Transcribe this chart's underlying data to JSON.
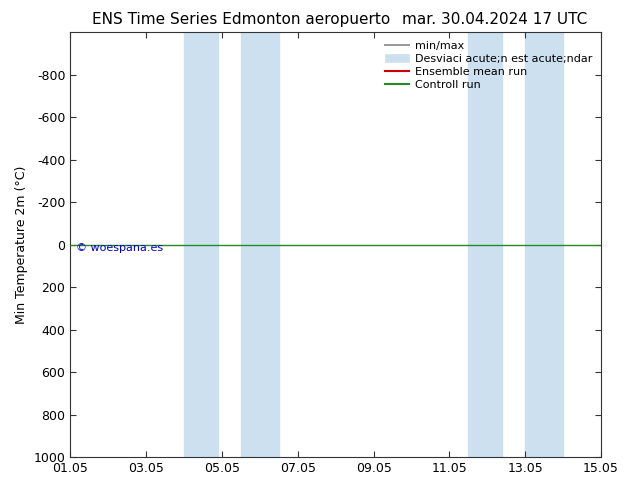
{
  "title_left": "ENS Time Series Edmonton aeropuerto",
  "title_right": "mar. 30.04.2024 17 UTC",
  "ylabel": "Min Temperature 2m (°C)",
  "xlim_num": [
    0,
    14
  ],
  "ylim_bottom": 1000,
  "ylim_top": -1000,
  "yticks": [
    -800,
    -600,
    -400,
    -200,
    0,
    200,
    400,
    600,
    800,
    1000
  ],
  "xtick_positions": [
    0,
    2,
    4,
    6,
    8,
    10,
    12,
    14
  ],
  "xtick_labels": [
    "01.05",
    "03.05",
    "05.05",
    "07.05",
    "09.05",
    "11.05",
    "13.05",
    "15.05"
  ],
  "shaded_regions": [
    [
      3.0,
      3.9
    ],
    [
      4.5,
      5.5
    ],
    [
      10.5,
      11.4
    ],
    [
      12.0,
      13.0
    ]
  ],
  "shaded_color": "#cce0f0",
  "control_run_y": 0,
  "control_run_color": "#228B22",
  "ensemble_mean_color": "#cc0000",
  "minmax_color": "#999999",
  "watermark_text": "© woespana.es",
  "watermark_color": "#0000cc",
  "legend_labels": [
    "min/max",
    "Desviaci acute;n est acute;ndar",
    "Ensemble mean run",
    "Controll run"
  ],
  "background_color": "#ffffff",
  "plot_bg_color": "#ffffff",
  "font_color": "#000000",
  "title_fontsize": 11,
  "axis_label_fontsize": 9,
  "tick_fontsize": 9,
  "legend_fontsize": 8
}
